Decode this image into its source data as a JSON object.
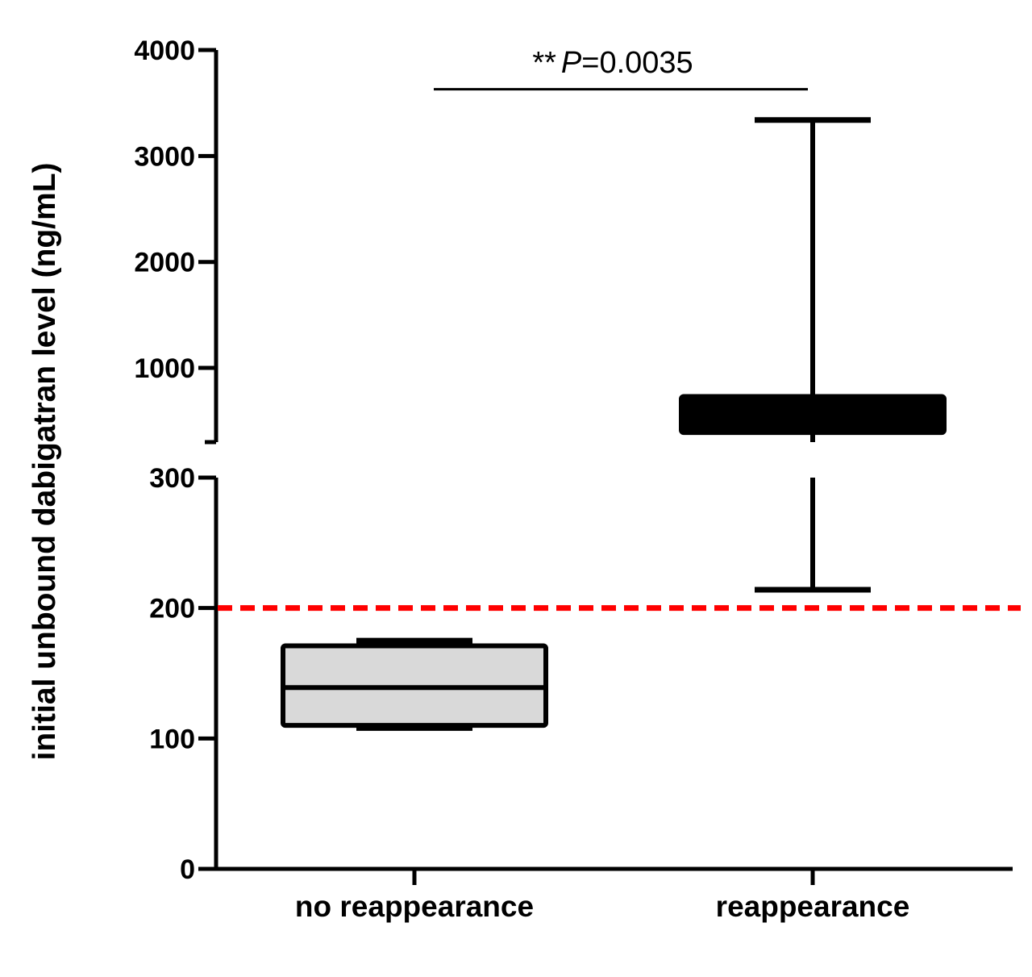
{
  "chart_data": {
    "type": "box",
    "ylabel": "initial unbound dabigatran level (ng/mL)",
    "xlabel": "",
    "y_axis": {
      "broken": true,
      "lower_segment": {
        "range": [
          0,
          300
        ],
        "ticks": [
          0,
          100,
          200,
          300
        ]
      },
      "upper_segment": {
        "range": [
          300,
          4000
        ],
        "ticks": [
          1000,
          2000,
          3000,
          4000
        ]
      }
    },
    "tick_labels": [
      "0",
      "100",
      "200",
      "300",
      "1000",
      "2000",
      "3000",
      "4000"
    ],
    "categories": [
      "no reappearance",
      "reappearance"
    ],
    "boxes": [
      {
        "category": "no reappearance",
        "whisker_low": 108,
        "q1": 110,
        "median": 139,
        "q3": 171,
        "whisker_high": 175,
        "fill": "#d9d9d9"
      },
      {
        "category": "reappearance",
        "whisker_low": 214,
        "q1": 390,
        "median": 560,
        "q3": 730,
        "whisker_high": 3340,
        "fill": "#000000"
      }
    ],
    "reference_line": {
      "value": 200,
      "color": "#ff0000",
      "style": "dashed"
    },
    "significance": {
      "stars": "**",
      "p_symbol": "P",
      "p_text": "=0.0035",
      "between": [
        "no reappearance",
        "reappearance"
      ],
      "y": 3630
    },
    "grid": false
  }
}
